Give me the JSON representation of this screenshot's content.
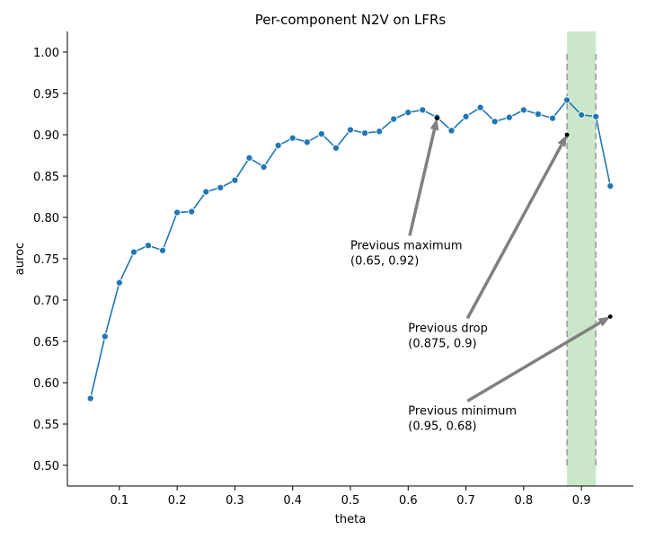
{
  "chart_data": {
    "type": "line",
    "title": "Per-component N2V on LFRs",
    "xlabel": "theta",
    "ylabel": "auroc",
    "xlim": [
      0.01,
      0.99
    ],
    "ylim": [
      0.475,
      1.025
    ],
    "xticks": [
      0.1,
      0.2,
      0.3,
      0.4,
      0.5,
      0.6,
      0.7,
      0.8,
      0.9
    ],
    "xtick_labels": [
      "0.1",
      "0.2",
      "0.3",
      "0.4",
      "0.5",
      "0.6",
      "0.7",
      "0.8",
      "0.9"
    ],
    "yticks": [
      0.5,
      0.55,
      0.6,
      0.65,
      0.7,
      0.75,
      0.8,
      0.85,
      0.9,
      0.95,
      1.0
    ],
    "ytick_labels": [
      "0.50",
      "0.55",
      "0.60",
      "0.65",
      "0.70",
      "0.75",
      "0.80",
      "0.85",
      "0.90",
      "0.95",
      "1.00"
    ],
    "grid": false,
    "series": [
      {
        "color": "#1f77b4",
        "x": [
          0.05,
          0.075,
          0.1,
          0.125,
          0.15,
          0.175,
          0.2,
          0.225,
          0.25,
          0.275,
          0.3,
          0.325,
          0.35,
          0.375,
          0.4,
          0.425,
          0.45,
          0.475,
          0.5,
          0.525,
          0.55,
          0.575,
          0.6,
          0.625,
          0.65,
          0.675,
          0.7,
          0.725,
          0.75,
          0.775,
          0.8,
          0.825,
          0.85,
          0.875,
          0.9,
          0.925,
          0.95
        ],
        "values": [
          0.581,
          0.656,
          0.721,
          0.758,
          0.766,
          0.76,
          0.806,
          0.807,
          0.831,
          0.836,
          0.845,
          0.872,
          0.861,
          0.887,
          0.896,
          0.891,
          0.901,
          0.884,
          0.906,
          0.902,
          0.904,
          0.919,
          0.927,
          0.93,
          0.921,
          0.905,
          0.922,
          0.933,
          0.916,
          0.921,
          0.93,
          0.925,
          0.92,
          0.942,
          0.924,
          0.922,
          0.838
        ]
      }
    ],
    "highlight_band": {
      "x_start": 0.875,
      "x_end": 0.925,
      "color": "#2ca02c"
    },
    "dashed_lines": [
      {
        "x": 0.875,
        "y_start": 0.5,
        "y_end": 1.0
      },
      {
        "x": 0.925,
        "y_start": 0.5,
        "y_end": 1.0
      }
    ],
    "annotations": [
      {
        "line1": "Previous maximum",
        "line2": "(0.65, 0.92)",
        "point_x": 0.65,
        "point_y": 0.92,
        "text_x": 0.5,
        "text_y": 0.767
      },
      {
        "line1": "Previous drop",
        "line2": "(0.875, 0.9)",
        "point_x": 0.875,
        "point_y": 0.9,
        "text_x": 0.6,
        "text_y": 0.667
      },
      {
        "line1": "Previous minimum",
        "line2": "(0.95, 0.68)",
        "point_x": 0.95,
        "point_y": 0.68,
        "text_x": 0.6,
        "text_y": 0.567
      }
    ]
  }
}
